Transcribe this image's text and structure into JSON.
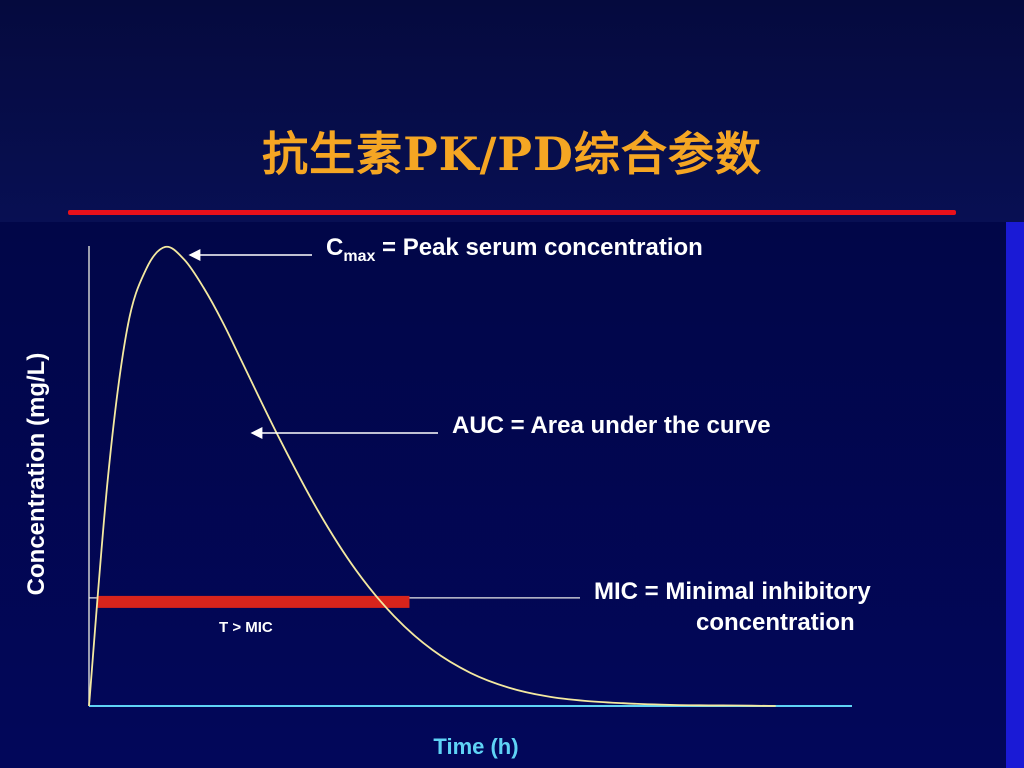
{
  "slide": {
    "title": "抗生素PK/PD综合参数"
  },
  "colors": {
    "title": "#f5a623",
    "rule": "#e8101a",
    "curve": "#f4e9a0",
    "axis": "#5fd3f5",
    "axis_label": "#5fd3f5",
    "annotation": "#ffffff",
    "t_mic_bar": "#d8241c"
  },
  "chart_data": {
    "type": "line",
    "xlabel": "Time (h)",
    "ylabel": "Concentration (mg/L)",
    "xlim": [
      0,
      10
    ],
    "ylim": [
      0,
      10
    ],
    "grid": false,
    "series": [
      {
        "x": [
          0,
          0.25,
          0.5,
          0.75,
          1.0,
          1.25,
          1.5,
          1.75,
          2.0,
          2.5,
          3.0,
          3.5,
          4.0,
          4.5,
          5.0,
          5.5,
          6.0,
          6.5,
          7.0,
          7.5,
          8.0,
          8.5,
          9.0
        ],
        "y": [
          0,
          5.0,
          8.2,
          9.5,
          9.98,
          9.7,
          9.1,
          8.35,
          7.5,
          5.8,
          4.25,
          2.95,
          1.95,
          1.22,
          0.72,
          0.4,
          0.21,
          0.11,
          0.06,
          0.03,
          0.015,
          0.01,
          0.0
        ]
      }
    ],
    "mic_level": 2.35,
    "t_above_mic": [
      0.1,
      4.2
    ],
    "annotations": {
      "cmax_main": "C",
      "cmax_sub": "max",
      "cmax_rest": " = Peak serum concentration",
      "auc": "AUC = Area under the curve",
      "mic_line1": "MIC = Minimal inhibitory",
      "mic_line2": "concentration",
      "t_mic": "T > MIC"
    }
  }
}
